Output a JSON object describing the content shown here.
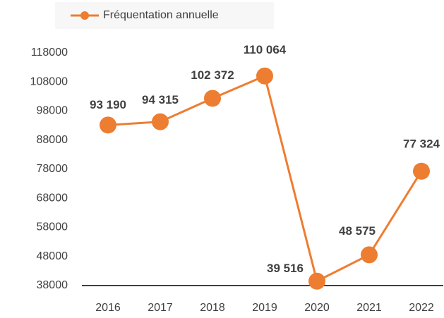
{
  "chart_data": {
    "type": "line",
    "categories": [
      "2016",
      "2017",
      "2018",
      "2019",
      "2020",
      "2021",
      "2022"
    ],
    "series": [
      {
        "name": "Fréquentation annuelle",
        "color": "#ed7d31",
        "values": [
          93190,
          94315,
          102372,
          110064,
          39516,
          48575,
          77324
        ],
        "value_labels": [
          "93 190",
          "94 315",
          "102 372",
          "110 064",
          "39 516",
          "48 575",
          "77 324"
        ]
      }
    ],
    "ylim": [
      38000,
      118000
    ],
    "yticks": [
      38000,
      48000,
      58000,
      68000,
      78000,
      88000,
      98000,
      108000,
      118000
    ],
    "legend": "top"
  }
}
